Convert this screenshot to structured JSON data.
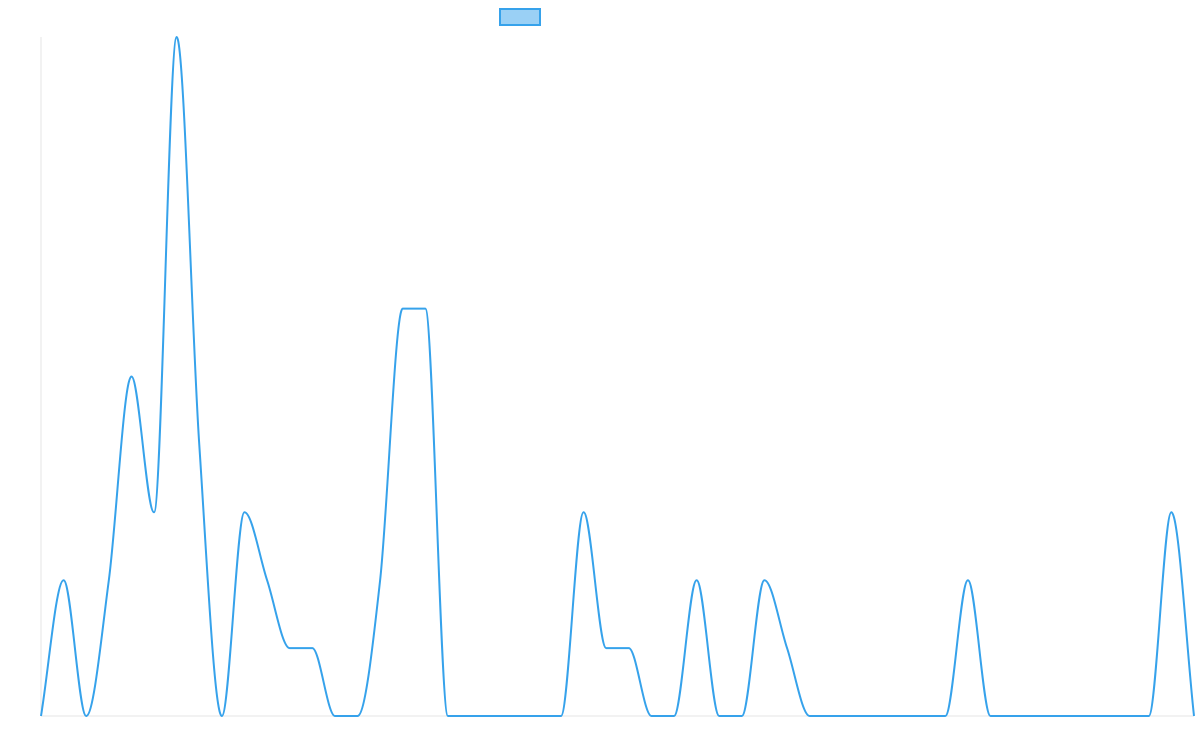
{
  "chart_data": {
    "type": "line",
    "title": "",
    "xlabel": "",
    "ylabel": "",
    "ylim": [
      0,
      10
    ],
    "grid": false,
    "legend_position": "top-center",
    "smooth": true,
    "fill": false,
    "x": [
      0,
      1,
      2,
      3,
      4,
      5,
      6,
      7,
      8,
      9,
      10,
      11,
      12,
      13,
      14,
      15,
      16,
      17,
      18,
      19,
      20,
      21,
      22,
      23,
      24,
      25,
      26,
      27,
      28,
      29,
      30,
      31,
      32,
      33,
      34,
      35,
      36,
      37,
      38,
      39,
      40,
      41,
      42,
      43,
      44,
      45,
      46,
      47,
      48,
      49,
      50,
      51
    ],
    "series": [
      {
        "name": "",
        "color": "#36a2eb",
        "fill_color": "#9ad0f5",
        "values": [
          0,
          2,
          0,
          2,
          5,
          3,
          10,
          4,
          0,
          3,
          2,
          1,
          1,
          0,
          0,
          2,
          6,
          6,
          0,
          0,
          0,
          0,
          0,
          0,
          3,
          1,
          1,
          0,
          0,
          2,
          0,
          0,
          2,
          1,
          0,
          0,
          0,
          0,
          0,
          0,
          0,
          2,
          0,
          0,
          0,
          0,
          0,
          0,
          0,
          0,
          3,
          0
        ]
      }
    ]
  }
}
